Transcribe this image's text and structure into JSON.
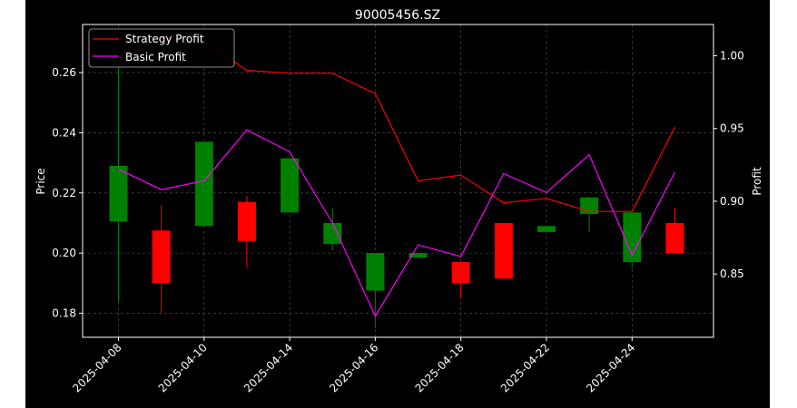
{
  "chart_data": {
    "type": "candlestick",
    "title": "90005456.SZ",
    "xlabel": "",
    "ylabel": "Price",
    "y2label": "Profit",
    "ylim": [
      0.172,
      0.276
    ],
    "y2lim": [
      0.8065,
      1.0215
    ],
    "yticks": [
      0.18,
      0.2,
      0.22,
      0.24,
      0.26
    ],
    "ytick_labels": [
      "0.18",
      "0.20",
      "0.22",
      "0.24",
      "0.26"
    ],
    "y2ticks": [
      0.85,
      0.9,
      0.95,
      1.0
    ],
    "y2tick_labels": [
      "0.85",
      "0.90",
      "0.95",
      "1.00"
    ],
    "xtick_labels": [
      "2025-04-08",
      "2025-04-10",
      "2025-04-14",
      "2025-04-16",
      "2025-04-18",
      "2025-04-22",
      "2025-04-24"
    ],
    "xtick_index": [
      0,
      2,
      4,
      6,
      8,
      10,
      12
    ],
    "grid": true,
    "legend_position": "top-left",
    "colors": {
      "up": "#008000",
      "down": "#ff0000",
      "strategy": "#ff0000",
      "basic": "#ff00ff",
      "background": "#000000",
      "foreground": "#ffffff"
    },
    "candles": [
      {
        "open": 0.2105,
        "close": 0.229,
        "high": 0.262,
        "low": 0.184
      },
      {
        "open": 0.2075,
        "close": 0.19,
        "high": 0.216,
        "low": 0.18
      },
      {
        "open": 0.209,
        "close": 0.237,
        "high": 0.237,
        "low": 0.209
      },
      {
        "open": 0.217,
        "close": 0.204,
        "high": 0.219,
        "low": 0.195
      },
      {
        "open": 0.2135,
        "close": 0.2315,
        "high": 0.2315,
        "low": 0.2135
      },
      {
        "open": 0.203,
        "close": 0.21,
        "high": 0.215,
        "low": 0.201
      },
      {
        "open": 0.1875,
        "close": 0.2,
        "high": 0.2,
        "low": 0.175
      },
      {
        "open": 0.1985,
        "close": 0.2,
        "high": 0.2,
        "low": 0.1985
      },
      {
        "open": 0.197,
        "close": 0.19,
        "high": 0.197,
        "low": 0.185
      },
      {
        "open": 0.21,
        "close": 0.1915,
        "high": 0.21,
        "low": 0.1915
      },
      {
        "open": 0.207,
        "close": 0.209,
        "high": 0.209,
        "low": 0.207
      },
      {
        "open": 0.213,
        "close": 0.2185,
        "high": 0.2185,
        "low": 0.207
      },
      {
        "open": 0.197,
        "close": 0.2135,
        "high": 0.2135,
        "low": 0.195
      },
      {
        "open": 0.21,
        "close": 0.2,
        "high": 0.215,
        "low": 0.2
      }
    ],
    "series": [
      {
        "name": "Strategy Profit",
        "values": [
          1.001,
          1.012,
          1.01,
          0.99,
          0.988,
          0.988,
          0.974,
          0.914,
          0.918,
          0.899,
          0.902,
          0.893,
          0.893,
          0.951
        ]
      },
      {
        "name": "Basic Profit",
        "values": [
          0.922,
          0.908,
          0.914,
          0.949,
          0.934,
          0.885,
          0.821,
          0.87,
          0.862,
          0.919,
          0.906,
          0.932,
          0.863,
          0.92
        ]
      }
    ]
  }
}
